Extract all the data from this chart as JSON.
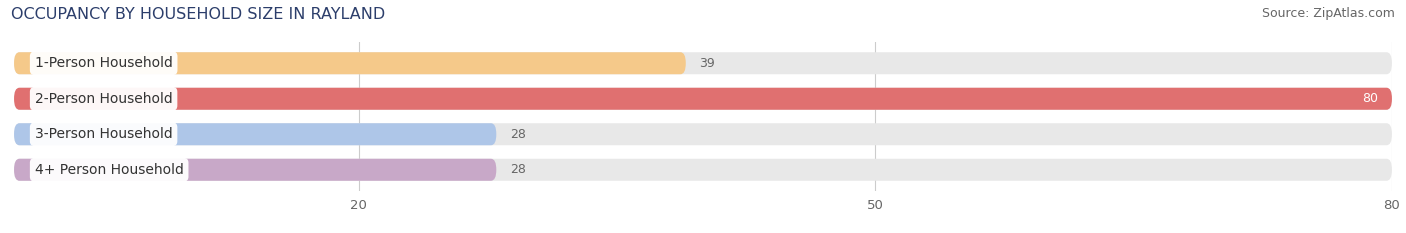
{
  "title": "OCCUPANCY BY HOUSEHOLD SIZE IN RAYLAND",
  "source": "Source: ZipAtlas.com",
  "categories": [
    "1-Person Household",
    "2-Person Household",
    "3-Person Household",
    "4+ Person Household"
  ],
  "values": [
    39,
    80,
    28,
    28
  ],
  "bar_colors": [
    "#f5c98a",
    "#e07070",
    "#aec6e8",
    "#c8a8c8"
  ],
  "bar_bg_color": "#e8e8e8",
  "xlim": [
    0,
    80
  ],
  "xticks": [
    20,
    50,
    80
  ],
  "label_color_inner": "#ffffff",
  "label_color_outer": "#555555",
  "background_color": "#ffffff",
  "title_fontsize": 11.5,
  "source_fontsize": 9,
  "tick_fontsize": 9.5,
  "bar_label_fontsize": 9,
  "category_fontsize": 10
}
